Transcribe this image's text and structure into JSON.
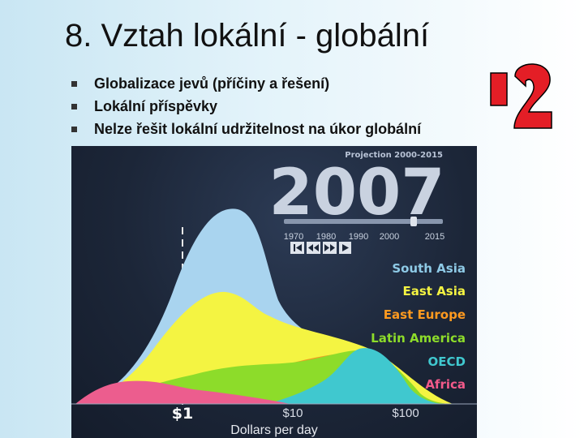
{
  "slide": {
    "title": "8. Vztah lokální - globální",
    "bullets": [
      "Globalizace jevů (příčiny a řešení)",
      "Lokální příspěvky",
      "Nelze řešit lokální udržitelnost na úkor globální"
    ]
  },
  "figure": {
    "projection_label": "Projection 2000-2015",
    "year": "2007",
    "timeline_ticks": [
      "1970",
      "1980",
      "1990",
      "2000",
      "2015"
    ],
    "playback_buttons": [
      "first-icon",
      "rewind-icon",
      "forward-icon",
      "play-icon"
    ],
    "regions": [
      {
        "name": "South Asia",
        "color": "#8ecae6"
      },
      {
        "name": "East Asia",
        "color": "#f4f442"
      },
      {
        "name": "East Europe",
        "color": "#ff9a1f"
      },
      {
        "name": "Latin America",
        "color": "#8ddc2a"
      },
      {
        "name": "OECD",
        "color": "#40c8cf"
      },
      {
        "name": "Africa",
        "color": "#f25a8a"
      }
    ],
    "x_ticks": [
      "$1",
      "$10",
      "$100"
    ],
    "x_label": "Dollars per day"
  },
  "decoration": {
    "icon": "question-mark-icon",
    "color": "#e41e26"
  }
}
